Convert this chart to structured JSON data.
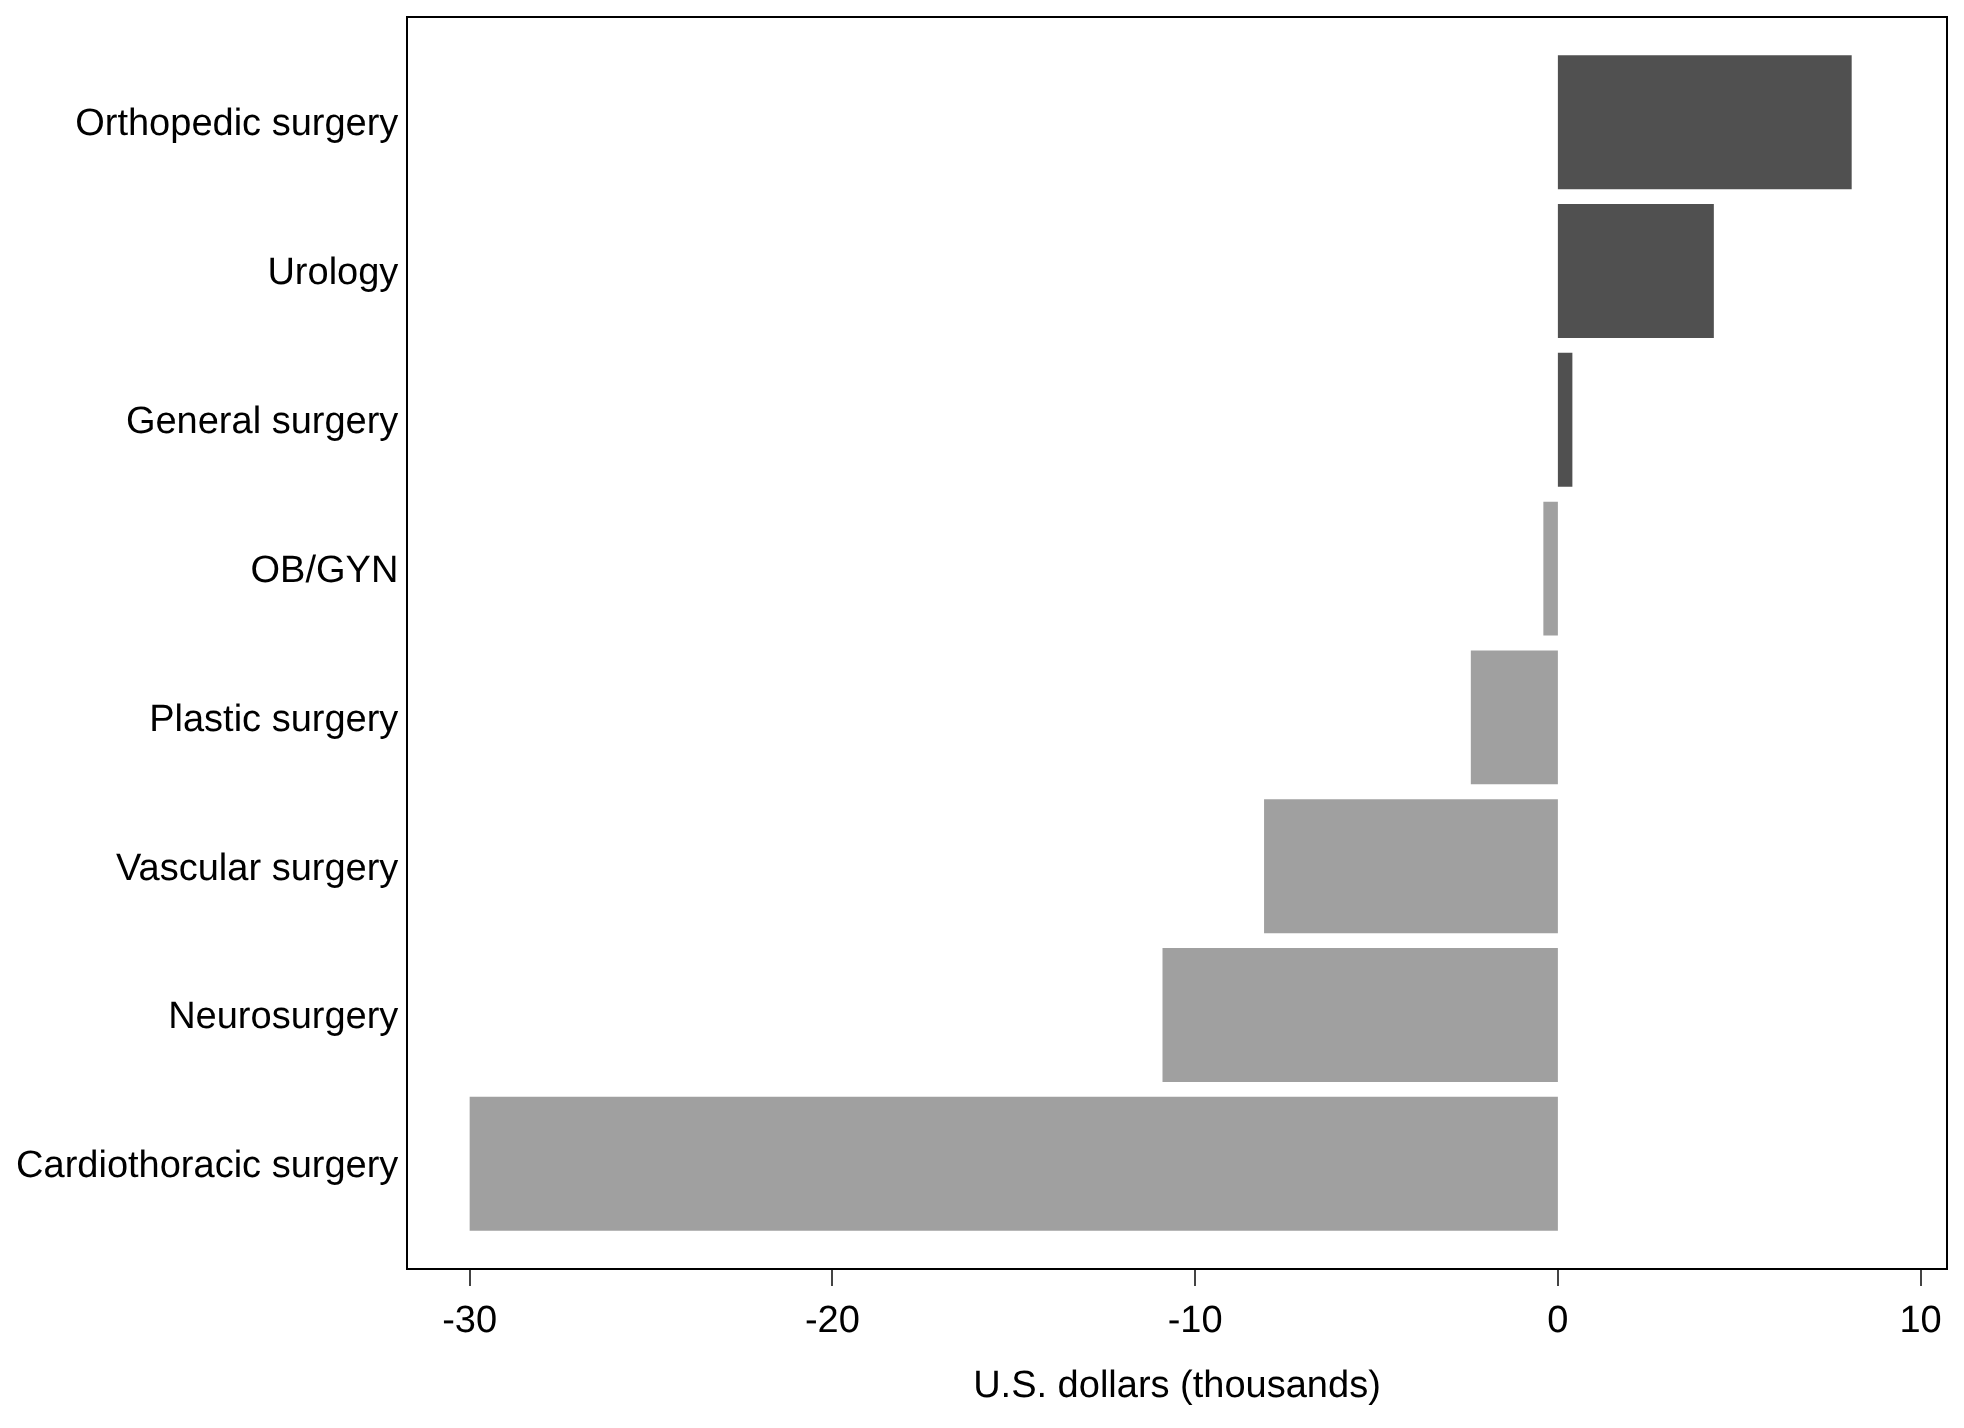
{
  "chart_data": {
    "type": "bar",
    "orientation": "horizontal",
    "xlabel": "U.S. dollars (thousands)",
    "categories": [
      "Orthopedic surgery",
      "Urology",
      "General surgery",
      "OB/GYN",
      "Plastic surgery",
      "Vascular surgery",
      "Neurosurgery",
      "Cardiothoracic surgery"
    ],
    "values": [
      8.1,
      4.3,
      0.4,
      -0.4,
      -2.4,
      -8.1,
      -10.9,
      -30.0
    ],
    "colors": [
      "#505050",
      "#505050",
      "#505050",
      "#a0a0a0",
      "#a0a0a0",
      "#a0a0a0",
      "#a0a0a0",
      "#a0a0a0"
    ],
    "xlim": [
      -31.7,
      10.7
    ],
    "xticks": [
      -30,
      -20,
      -10,
      0,
      10
    ]
  }
}
